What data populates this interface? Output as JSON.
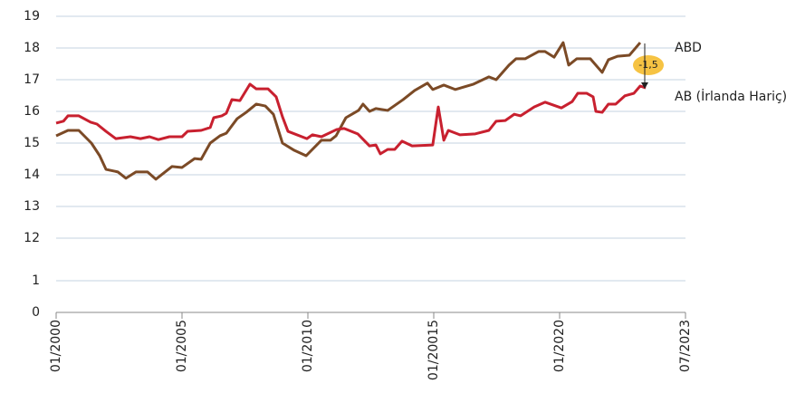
{
  "chart_data": {
    "type": "line",
    "xlim": [
      2000,
      2025
    ],
    "xticks": [
      {
        "value": 2000,
        "label": "01/2000"
      },
      {
        "value": 2005,
        "label": "01/2005"
      },
      {
        "value": 2010,
        "label": "01/2010"
      },
      {
        "value": 2015,
        "label": "01/20015"
      },
      {
        "value": 2020,
        "label": "01/2020"
      },
      {
        "value": 2025,
        "label": "07/2023"
      }
    ],
    "ylim": [
      0,
      19
    ],
    "yticks": [
      0,
      1,
      12,
      13,
      14,
      15,
      16,
      17,
      18,
      19
    ],
    "axis_break": [
      1,
      12
    ],
    "grid": true,
    "annotation": "-1,5",
    "series": [
      {
        "name": "ABD",
        "color": "#7b4a26",
        "x": [
          2000,
          2000.47,
          2000.9,
          2001.4,
          2001.73,
          2001.98,
          2002.45,
          2002.77,
          2003.17,
          2003.63,
          2003.96,
          2004.6,
          2005,
          2005.5,
          2005.76,
          2006.12,
          2006.51,
          2006.76,
          2007.19,
          2007.55,
          2007.95,
          2008.31,
          2008.63,
          2008.99,
          2009.46,
          2009.93,
          2010.54,
          2010.9,
          2011.12,
          2011.51,
          2012.01,
          2012.19,
          2012.45,
          2012.7,
          2013.17,
          2013.78,
          2014.24,
          2014.75,
          2014.96,
          2015.4,
          2015.86,
          2016.58,
          2017.19,
          2017.48,
          2017.99,
          2018.27,
          2018.63,
          2019.17,
          2019.42,
          2019.78,
          2020.14,
          2020.36,
          2020.68,
          2021.22,
          2021.69,
          2021.94,
          2022.3,
          2022.77,
          2023.2
        ],
        "values": [
          15.23,
          15.4,
          15.4,
          15.0,
          14.6,
          14.17,
          14.09,
          13.89,
          14.09,
          14.09,
          13.86,
          14.26,
          14.23,
          14.51,
          14.49,
          15.0,
          15.23,
          15.31,
          15.77,
          15.97,
          16.23,
          16.17,
          15.91,
          15.0,
          14.77,
          14.6,
          15.09,
          15.09,
          15.23,
          15.8,
          16.03,
          16.23,
          16.0,
          16.09,
          16.03,
          16.37,
          16.66,
          16.89,
          16.69,
          16.83,
          16.69,
          16.86,
          17.09,
          17.0,
          17.46,
          17.66,
          17.66,
          17.89,
          17.89,
          17.71,
          18.17,
          17.46,
          17.66,
          17.66,
          17.23,
          17.63,
          17.74,
          17.77,
          18.17
        ]
      },
      {
        "name": "AB (İrlanda Hariç)",
        "color": "#c8202f",
        "x": [
          2000,
          2000.29,
          2000.47,
          2000.9,
          2001.37,
          2001.62,
          2001.98,
          2002.37,
          2002.95,
          2003.35,
          2003.71,
          2004.06,
          2004.5,
          2005,
          2005.22,
          2005.76,
          2006.12,
          2006.26,
          2006.58,
          2006.76,
          2006.98,
          2007.3,
          2007.7,
          2007.95,
          2008.42,
          2008.74,
          2008.99,
          2009.21,
          2009.96,
          2010.18,
          2010.54,
          2011.15,
          2011.44,
          2011.98,
          2012.45,
          2012.7,
          2012.88,
          2013.17,
          2013.45,
          2013.74,
          2014.14,
          2014.96,
          2015.18,
          2015.4,
          2015.58,
          2016.04,
          2016.65,
          2017.19,
          2017.48,
          2017.84,
          2018.2,
          2018.45,
          2018.99,
          2019.42,
          2020.07,
          2020.5,
          2020.72,
          2021.08,
          2021.33,
          2021.44,
          2021.69,
          2021.94,
          2022.23,
          2022.59,
          2022.95,
          2023.2,
          2023.42
        ],
        "values": [
          15.63,
          15.69,
          15.86,
          15.86,
          15.66,
          15.6,
          15.37,
          15.14,
          15.2,
          15.14,
          15.2,
          15.11,
          15.2,
          15.2,
          15.37,
          15.4,
          15.49,
          15.8,
          15.86,
          15.94,
          16.37,
          16.34,
          16.86,
          16.71,
          16.71,
          16.46,
          15.83,
          15.37,
          15.14,
          15.26,
          15.2,
          15.43,
          15.46,
          15.29,
          14.91,
          14.94,
          14.66,
          14.8,
          14.8,
          15.06,
          14.91,
          14.94,
          16.14,
          15.09,
          15.4,
          15.26,
          15.29,
          15.4,
          15.69,
          15.71,
          15.91,
          15.86,
          16.14,
          16.29,
          16.11,
          16.31,
          16.57,
          16.57,
          16.46,
          16.0,
          15.97,
          16.23,
          16.23,
          16.49,
          16.57,
          16.8,
          16.74
        ]
      }
    ]
  }
}
